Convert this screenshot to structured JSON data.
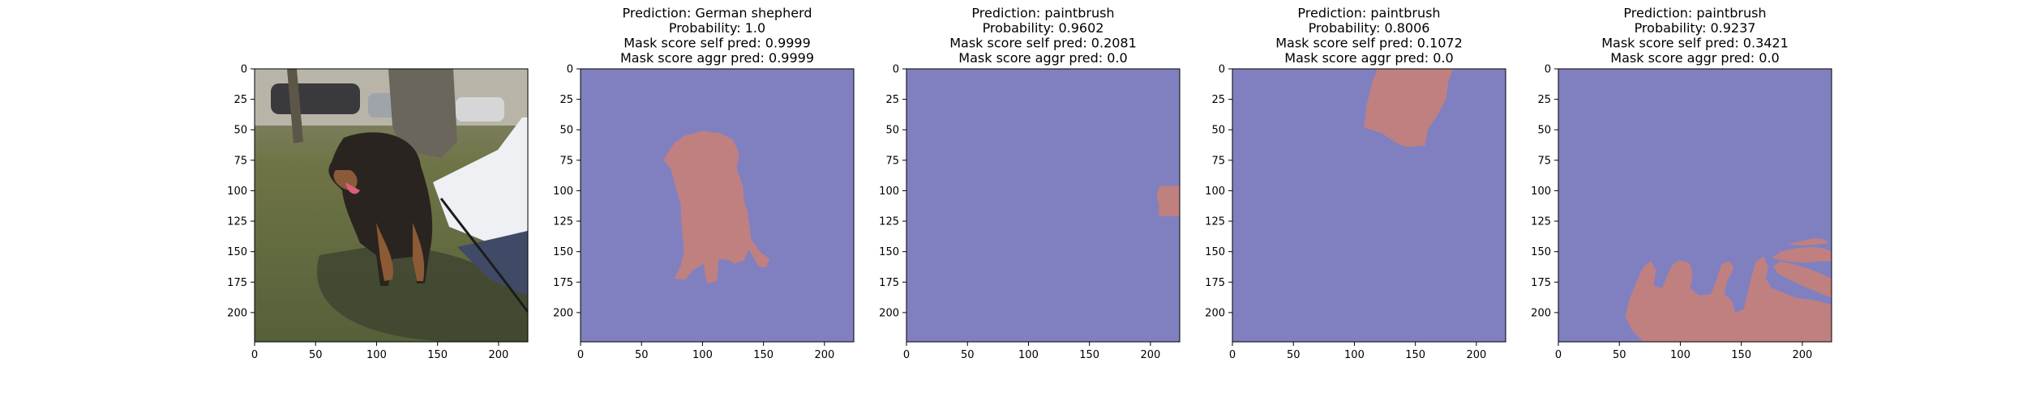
{
  "chart_data": {
    "type": "image_grid",
    "panel_count": 5,
    "image_size": [
      224,
      224
    ],
    "xticks": [
      "0",
      "50",
      "100",
      "150",
      "200"
    ],
    "yticks": [
      "0",
      "25",
      "50",
      "75",
      "100",
      "125",
      "150",
      "175",
      "200"
    ],
    "xtick_values": [
      0,
      50,
      100,
      150,
      200
    ],
    "ytick_values": [
      0,
      25,
      50,
      75,
      100,
      125,
      150,
      175,
      200
    ],
    "colors": {
      "background_mask": "#8080c0",
      "foreground_mask": "#c08080",
      "axis": "#000000"
    },
    "panels": [
      {
        "kind": "photo",
        "title_lines": []
      },
      {
        "kind": "mask",
        "title_lines": [
          "Prediction: German shepherd",
          "Probability: 1.0",
          "Mask score self pred: 0.9999",
          "Mask score aggr pred: 0.9999"
        ],
        "regions": [
          [
            [
              85,
              55
            ],
            [
              100,
              51
            ],
            [
              115,
              53
            ],
            [
              125,
              58
            ],
            [
              130,
              70
            ],
            [
              128,
              82
            ],
            [
              133,
              96
            ],
            [
              134,
              108
            ],
            [
              137,
              118
            ],
            [
              140,
              140
            ],
            [
              147,
              150
            ],
            [
              155,
              156
            ],
            [
              152,
              163
            ],
            [
              146,
              162
            ],
            [
              138,
              148
            ],
            [
              134,
              157
            ],
            [
              126,
              160
            ],
            [
              122,
              157
            ],
            [
              113,
              156
            ],
            [
              112,
              174
            ],
            [
              104,
              176
            ],
            [
              102,
              168
            ],
            [
              101,
              160
            ],
            [
              92,
              165
            ],
            [
              86,
              173
            ],
            [
              77,
              172
            ],
            [
              82,
              162
            ],
            [
              85,
              150
            ],
            [
              83,
              130
            ],
            [
              82,
              110
            ],
            [
              78,
              97
            ],
            [
              74,
              82
            ],
            [
              68,
              75
            ],
            [
              72,
              68
            ],
            [
              78,
              60
            ]
          ]
        ]
      },
      {
        "kind": "mask",
        "title_lines": [
          "Prediction: paintbrush",
          "Probability: 0.9602",
          "Mask score self pred: 0.2081",
          "Mask score aggr pred: 0.0"
        ],
        "regions": [
          [
            [
              208,
              96
            ],
            [
              224,
              96
            ],
            [
              224,
              121
            ],
            [
              207,
              121
            ],
            [
              207,
              112
            ],
            [
              205,
              104
            ]
          ]
        ]
      },
      {
        "kind": "mask",
        "title_lines": [
          "Prediction: paintbrush",
          "Probability: 0.8006",
          "Mask score self pred: 0.1072",
          "Mask score aggr pred: 0.0"
        ],
        "regions": [
          [
            [
              119,
              0
            ],
            [
              181,
              0
            ],
            [
              177,
              10
            ],
            [
              175,
              25
            ],
            [
              168,
              38
            ],
            [
              160,
              50
            ],
            [
              158,
              63
            ],
            [
              142,
              64
            ],
            [
              133,
              60
            ],
            [
              123,
              53
            ],
            [
              108,
              48
            ],
            [
              110,
              30
            ],
            [
              115,
              10
            ]
          ]
        ]
      },
      {
        "kind": "mask",
        "title_lines": [
          "Prediction: paintbrush",
          "Probability: 0.9237",
          "Mask score self pred: 0.3421",
          "Mask score aggr pred: 0.0"
        ],
        "regions": [
          [
            [
              55,
              203
            ],
            [
              58,
              190
            ],
            [
              64,
              175
            ],
            [
              70,
              162
            ],
            [
              76,
              158
            ],
            [
              80,
              165
            ],
            [
              78,
              178
            ],
            [
              85,
              180
            ],
            [
              90,
              168
            ],
            [
              94,
              160
            ],
            [
              100,
              157
            ],
            [
              108,
              160
            ],
            [
              110,
              170
            ],
            [
              108,
              180
            ],
            [
              115,
              186
            ],
            [
              125,
              185
            ],
            [
              130,
              172
            ],
            [
              134,
              160
            ],
            [
              140,
              158
            ],
            [
              144,
              163
            ],
            [
              138,
              175
            ],
            [
              136,
              185
            ],
            [
              142,
              190
            ],
            [
              145,
              200
            ],
            [
              152,
              197
            ],
            [
              155,
              185
            ],
            [
              158,
              172
            ],
            [
              162,
              158
            ],
            [
              168,
              154
            ],
            [
              172,
              162
            ],
            [
              170,
              172
            ],
            [
              175,
              180
            ],
            [
              185,
              184
            ],
            [
              195,
              188
            ],
            [
              210,
              190
            ],
            [
              222,
              193
            ],
            [
              224,
              194
            ],
            [
              224,
              224
            ],
            [
              70,
              224
            ],
            [
              60,
              214
            ]
          ],
          [
            [
              176,
              162
            ],
            [
              182,
              158
            ],
            [
              192,
              160
            ],
            [
              205,
              164
            ],
            [
              215,
              168
            ],
            [
              224,
              172
            ],
            [
              224,
              188
            ],
            [
              212,
              183
            ],
            [
              200,
              178
            ],
            [
              188,
              172
            ],
            [
              180,
              168
            ]
          ],
          [
            [
              175,
              155
            ],
            [
              182,
              150
            ],
            [
              196,
              147
            ],
            [
              210,
              146
            ],
            [
              220,
              148
            ],
            [
              224,
              150
            ],
            [
              224,
              158
            ],
            [
              212,
              158
            ],
            [
              200,
              159
            ],
            [
              188,
              158
            ]
          ],
          [
            [
              188,
              144
            ],
            [
              200,
              141
            ],
            [
              210,
              139
            ],
            [
              218,
              140
            ],
            [
              222,
              143
            ],
            [
              212,
              144
            ],
            [
              200,
              145
            ]
          ]
        ]
      }
    ]
  }
}
